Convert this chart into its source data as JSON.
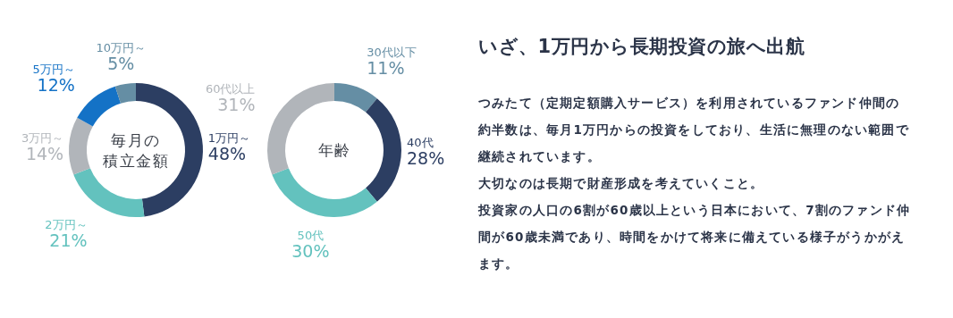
{
  "chart_data": [
    {
      "type": "donut",
      "title": "毎月の積立金額",
      "categories": [
        "1万円～",
        "2万円～",
        "3万円～",
        "5万円～",
        "10万円～"
      ],
      "values": [
        48,
        21,
        14,
        12,
        5
      ],
      "value_labels": [
        "48%",
        "21%",
        "14%",
        "12%",
        "5%"
      ],
      "colors": [
        "#2c3e62",
        "#63c2be",
        "#b1b5ba",
        "#1472c6",
        "#658ea4"
      ]
    },
    {
      "type": "donut",
      "title": "年齢",
      "categories": [
        "30代以下",
        "40代",
        "50代",
        "60代以上"
      ],
      "values": [
        11,
        28,
        30,
        31
      ],
      "value_labels": [
        "11%",
        "28%",
        "30%",
        "31%"
      ],
      "colors": [
        "#658ea4",
        "#2c3e62",
        "#63c2be",
        "#b1b5ba"
      ]
    },
    {
      "type": "other",
      "title": "いざ、1万円から長期投資の旅へ出航",
      "annotations": [
        "つみたて（定期定額購入サービス）を利用されているファンド仲間の約半数は、毎月1万円からの投資をしており、生活に無理のない範囲で継続されています。",
        "大切なのは長期で財産形成を考えていくこと。",
        "投資家の人口の6割が60歳以上という日本において、7割のファンド仲間が60歳未満であり、時間をかけて将来に備えている様子がうかがえます。"
      ]
    }
  ]
}
